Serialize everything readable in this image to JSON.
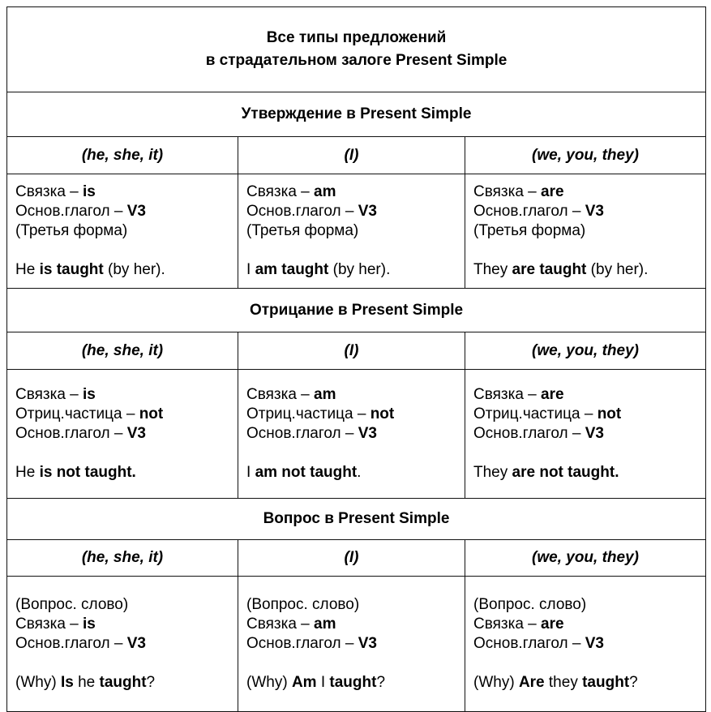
{
  "title": {
    "line1": "Все типы предложений",
    "line2": "в страдательном залоге Present Simple"
  },
  "sections": [
    {
      "header": "Утверждение в Present Simple",
      "pronouns": [
        "(he, she, it)",
        "(I)",
        "(we, you, they)"
      ],
      "cells": [
        [
          [
            {
              "t": "Связка – "
            },
            {
              "t": "is",
              "b": true
            }
          ],
          [
            {
              "t": "Основ.глагол – "
            },
            {
              "t": "V3",
              "b": true
            }
          ],
          [
            {
              "t": "(Третья форма)"
            }
          ],
          [],
          [
            {
              "t": "He "
            },
            {
              "t": "is taught",
              "b": true
            },
            {
              "t": " (by her)."
            }
          ]
        ],
        [
          [
            {
              "t": "Связка – "
            },
            {
              "t": "am",
              "b": true
            }
          ],
          [
            {
              "t": "Основ.глагол – "
            },
            {
              "t": "V3",
              "b": true
            }
          ],
          [
            {
              "t": "(Третья форма)"
            }
          ],
          [],
          [
            {
              "t": "I "
            },
            {
              "t": "am taught",
              "b": true
            },
            {
              "t": " (by her)."
            }
          ]
        ],
        [
          [
            {
              "t": "Связка – "
            },
            {
              "t": "are",
              "b": true
            }
          ],
          [
            {
              "t": "Основ.глагол – "
            },
            {
              "t": "V3",
              "b": true
            }
          ],
          [
            {
              "t": "(Третья форма)"
            }
          ],
          [],
          [
            {
              "t": "They "
            },
            {
              "t": "are taught",
              "b": true
            },
            {
              "t": " (by her)."
            }
          ]
        ]
      ]
    },
    {
      "header": "Отрицание в Present Simple",
      "pronouns": [
        "(he, she, it)",
        "(I)",
        "(we, you, they)"
      ],
      "cells": [
        [
          [
            {
              "t": "Связка – "
            },
            {
              "t": "is",
              "b": true
            }
          ],
          [
            {
              "t": "Отриц.частица – "
            },
            {
              "t": "not",
              "b": true
            }
          ],
          [
            {
              "t": "Основ.глагол – "
            },
            {
              "t": "V3",
              "b": true
            }
          ],
          [],
          [
            {
              "t": "He "
            },
            {
              "t": "is not taught.",
              "b": true
            }
          ]
        ],
        [
          [
            {
              "t": "Связка – "
            },
            {
              "t": "am",
              "b": true
            }
          ],
          [
            {
              "t": "Отриц.частица – "
            },
            {
              "t": "not",
              "b": true
            }
          ],
          [
            {
              "t": "Основ.глагол – "
            },
            {
              "t": "V3",
              "b": true
            }
          ],
          [],
          [
            {
              "t": "I "
            },
            {
              "t": "am not taught",
              "b": true
            },
            {
              "t": "."
            }
          ]
        ],
        [
          [
            {
              "t": "Связка – "
            },
            {
              "t": "are",
              "b": true
            }
          ],
          [
            {
              "t": "Отриц.частица – "
            },
            {
              "t": "not",
              "b": true
            }
          ],
          [
            {
              "t": "Основ.глагол – "
            },
            {
              "t": "V3",
              "b": true
            }
          ],
          [],
          [
            {
              "t": "They "
            },
            {
              "t": "are not taught.",
              "b": true
            }
          ]
        ]
      ]
    },
    {
      "header": "Вопрос в Present Simple",
      "pronouns": [
        "(he, she, it)",
        "(I)",
        "(we, you, they)"
      ],
      "cells": [
        [
          [
            {
              "t": "(Вопрос. слово)"
            }
          ],
          [
            {
              "t": "Связка – "
            },
            {
              "t": "is",
              "b": true
            }
          ],
          [
            {
              "t": "Основ.глагол – "
            },
            {
              "t": "V3",
              "b": true
            }
          ],
          [],
          [
            {
              "t": "(Why) "
            },
            {
              "t": "Is",
              "b": true
            },
            {
              "t": " he "
            },
            {
              "t": "taught",
              "b": true
            },
            {
              "t": "?"
            }
          ]
        ],
        [
          [
            {
              "t": "(Вопрос. слово)"
            }
          ],
          [
            {
              "t": "Связка – "
            },
            {
              "t": "am",
              "b": true
            }
          ],
          [
            {
              "t": "Основ.глагол – "
            },
            {
              "t": "V3",
              "b": true
            }
          ],
          [],
          [
            {
              "t": "(Why) "
            },
            {
              "t": "Am",
              "b": true
            },
            {
              "t": " I "
            },
            {
              "t": "taught",
              "b": true
            },
            {
              "t": "?"
            }
          ]
        ],
        [
          [
            {
              "t": "(Вопрос. слово)"
            }
          ],
          [
            {
              "t": "Связка – "
            },
            {
              "t": "are",
              "b": true
            }
          ],
          [
            {
              "t": "Основ.глагол – "
            },
            {
              "t": "V3",
              "b": true
            }
          ],
          [],
          [
            {
              "t": "(Why) "
            },
            {
              "t": "Are",
              "b": true
            },
            {
              "t": " they "
            },
            {
              "t": "taught",
              "b": true
            },
            {
              "t": "?"
            }
          ]
        ]
      ]
    }
  ]
}
